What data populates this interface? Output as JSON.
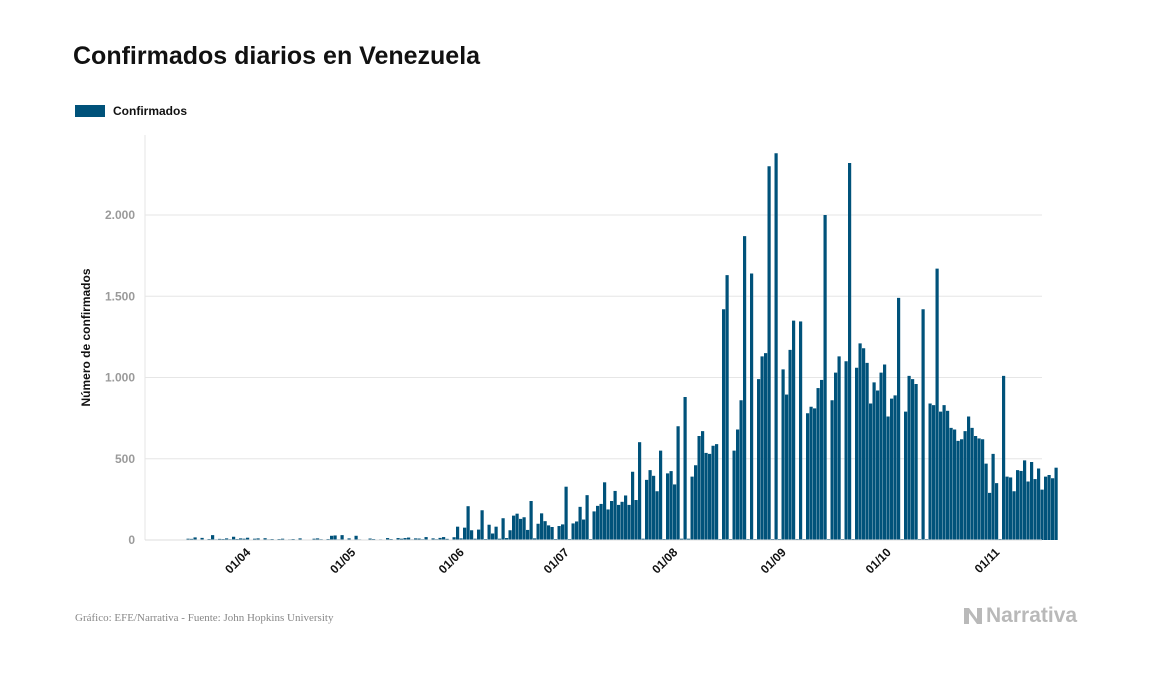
{
  "title": "Confirmados diarios en Venezuela",
  "legend": {
    "label": "Confirmados"
  },
  "colors": {
    "bar": "#00527a",
    "grid": "#e6e6e6",
    "tick": "#9a9a9a",
    "brand": "#b9b9b9"
  },
  "footer": {
    "source": "Gráfico: EFE/Narrativa - Fuente: John Hopkins University",
    "brand": "Narrativa",
    "brand_icon": "narrativa-logo-icon"
  },
  "chart_data": {
    "type": "bar",
    "title": "Confirmados diarios en Venezuela",
    "ylabel": "Número de confirmados",
    "xlabel": "",
    "ylim": [
      0,
      2500
    ],
    "yticks": [
      0,
      500,
      1000,
      1500,
      2000
    ],
    "ytick_labels": [
      "0",
      "500",
      "1.000",
      "1.500",
      "2.000"
    ],
    "grid": true,
    "legend_position": "top-left",
    "x_start": "2020-03-13",
    "xtick_labels": [
      "01/04",
      "01/05",
      "01/06",
      "01/07",
      "01/08",
      "01/09",
      "01/10",
      "01/11"
    ],
    "xtick_dates": [
      "2020-04-01",
      "2020-05-01",
      "2020-06-01",
      "2020-07-01",
      "2020-08-01",
      "2020-09-01",
      "2020-10-01",
      "2020-11-01"
    ],
    "series": [
      {
        "name": "Confirmados",
        "values": [
          2,
          8,
          7,
          16,
          3,
          13,
          3,
          6,
          30,
          4,
          7,
          6,
          10,
          5,
          20,
          6,
          10,
          8,
          14,
          2,
          8,
          10,
          3,
          11,
          4,
          6,
          2,
          6,
          8,
          2,
          4,
          6,
          3,
          10,
          2,
          2,
          3,
          8,
          10,
          5,
          2,
          6,
          26,
          28,
          4,
          30,
          2,
          10,
          3,
          26,
          4,
          2,
          1,
          9,
          6,
          2,
          4,
          3,
          12,
          6,
          2,
          12,
          8,
          12,
          15,
          4,
          10,
          9,
          5,
          18,
          3,
          10,
          5,
          13,
          18,
          7,
          2,
          17,
          82,
          10,
          76,
          208,
          60,
          8,
          64,
          183,
          6,
          94,
          40,
          82,
          8,
          134,
          12,
          60,
          150,
          162,
          130,
          140,
          62,
          240,
          10,
          100,
          164,
          116,
          90,
          80,
          6,
          86,
          96,
          328,
          6,
          102,
          114,
          204,
          126,
          276,
          6,
          176,
          210,
          222,
          355,
          188,
          240,
          302,
          216,
          235,
          274,
          216,
          420,
          246,
          602,
          8,
          370,
          430,
          395,
          300,
          550,
          6,
          410,
          424,
          342,
          700,
          8,
          880,
          8,
          390,
          460,
          640,
          670,
          536,
          530,
          580,
          590,
          6,
          1420,
          1630,
          6,
          550,
          680,
          860,
          1870,
          6,
          1640,
          6,
          990,
          1130,
          1150,
          2300,
          6,
          2380,
          6,
          1050,
          895,
          1170,
          1350,
          6,
          1345,
          6,
          780,
          820,
          810,
          935,
          985,
          2000,
          6,
          860,
          1030,
          1130,
          6,
          1100,
          2320,
          6,
          1060,
          1210,
          1180,
          1090,
          840,
          970,
          920,
          1030,
          1080,
          760,
          870,
          890,
          1490,
          6,
          790,
          1010,
          990,
          960,
          6,
          1420,
          6,
          840,
          830,
          1670,
          790,
          830,
          795,
          690,
          680,
          610,
          620,
          670,
          760,
          690,
          640,
          625,
          620,
          470,
          290,
          530,
          350,
          6,
          1010,
          390,
          385,
          300,
          430,
          425,
          490,
          360,
          480,
          375,
          440,
          310,
          390,
          400,
          380,
          445
        ]
      }
    ]
  }
}
